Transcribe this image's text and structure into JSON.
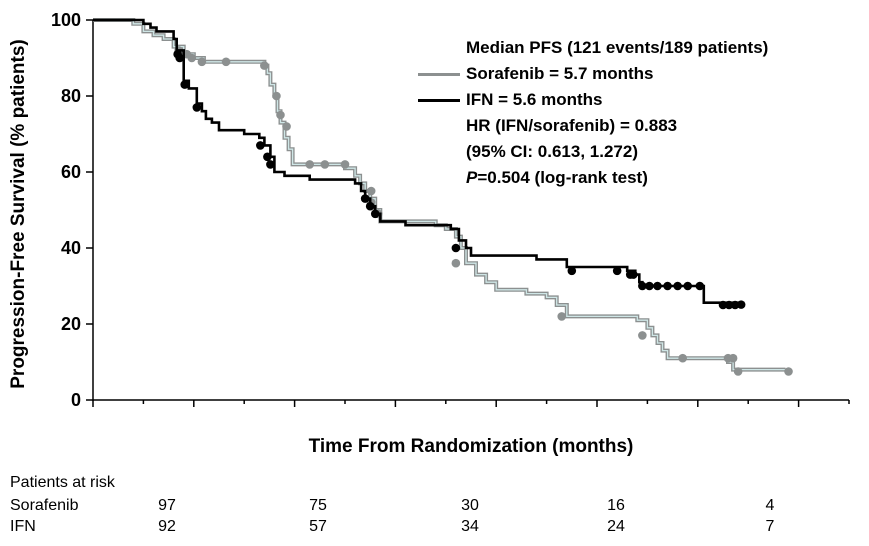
{
  "chart_data": {
    "type": "line",
    "title": "",
    "xlabel": "Time From Randomization (months)",
    "ylabel": "Progression-Free Survival (% patients)",
    "ylim": [
      0,
      100
    ],
    "yticks": [
      0,
      20,
      40,
      60,
      80,
      100
    ],
    "x_axis_ticks_labeled": false,
    "colors": {
      "sorafenib": "#8c9090",
      "ifn": "#000000",
      "sorafenib_inner": "#cfe6e6"
    },
    "series": [
      {
        "name": "Sorafenib",
        "steps": [
          [
            0,
            100
          ],
          [
            4,
            99
          ],
          [
            5,
            97
          ],
          [
            6,
            96
          ],
          [
            7,
            95
          ],
          [
            8,
            93
          ],
          [
            9,
            91
          ],
          [
            10,
            90
          ],
          [
            11,
            89
          ],
          [
            17,
            88
          ],
          [
            17.3,
            86
          ],
          [
            17.6,
            83
          ],
          [
            18,
            80
          ],
          [
            18.3,
            76
          ],
          [
            18.6,
            73
          ],
          [
            19,
            69
          ],
          [
            19.4,
            66
          ],
          [
            19.8,
            62
          ],
          [
            25,
            61
          ],
          [
            26,
            59
          ],
          [
            26.5,
            57
          ],
          [
            27,
            55
          ],
          [
            27.5,
            53
          ],
          [
            28,
            50
          ],
          [
            28.5,
            47
          ],
          [
            34,
            46
          ],
          [
            35,
            45
          ],
          [
            36,
            43
          ],
          [
            36.5,
            40
          ],
          [
            37,
            36
          ],
          [
            38,
            33
          ],
          [
            39,
            31
          ],
          [
            40,
            29
          ],
          [
            43,
            28
          ],
          [
            45,
            27
          ],
          [
            46,
            25
          ],
          [
            47,
            22
          ],
          [
            54,
            21
          ],
          [
            55,
            19
          ],
          [
            55.5,
            17
          ],
          [
            56,
            15
          ],
          [
            56.5,
            13
          ],
          [
            57,
            11
          ],
          [
            63,
            10
          ],
          [
            63.5,
            8
          ],
          [
            68.7,
            8
          ]
        ],
        "censor_marks": [
          [
            8.5,
            92
          ],
          [
            9.3,
            91
          ],
          [
            9.8,
            90
          ],
          [
            10.8,
            89
          ],
          [
            13.2,
            89
          ],
          [
            17,
            88
          ],
          [
            18.2,
            80
          ],
          [
            18.6,
            75
          ],
          [
            19.2,
            72
          ],
          [
            21.5,
            62
          ],
          [
            23,
            62
          ],
          [
            25,
            62
          ],
          [
            27.6,
            55
          ],
          [
            27.6,
            52
          ],
          [
            28.3,
            49
          ],
          [
            36,
            36
          ],
          [
            46.5,
            22
          ],
          [
            54.5,
            17
          ],
          [
            58.5,
            11
          ],
          [
            63,
            11
          ],
          [
            63.5,
            11
          ],
          [
            64,
            7.5
          ],
          [
            69,
            7.5
          ]
        ]
      },
      {
        "name": "IFN",
        "steps": [
          [
            0,
            100
          ],
          [
            5,
            99
          ],
          [
            5.7,
            98
          ],
          [
            6.3,
            97
          ],
          [
            8,
            95
          ],
          [
            8.3,
            92
          ],
          [
            9,
            84
          ],
          [
            9.5,
            82
          ],
          [
            10.3,
            78
          ],
          [
            10.8,
            76
          ],
          [
            11.2,
            74
          ],
          [
            11.8,
            73
          ],
          [
            12.5,
            71
          ],
          [
            15,
            70
          ],
          [
            16.5,
            69
          ],
          [
            17,
            67
          ],
          [
            17.6,
            64
          ],
          [
            18,
            60
          ],
          [
            19,
            59
          ],
          [
            21.5,
            58
          ],
          [
            26,
            57
          ],
          [
            26.6,
            55
          ],
          [
            27,
            53
          ],
          [
            27.5,
            51
          ],
          [
            28,
            49
          ],
          [
            28.5,
            47
          ],
          [
            31,
            46
          ],
          [
            35.5,
            45
          ],
          [
            36.3,
            42
          ],
          [
            37,
            40
          ],
          [
            37.5,
            38
          ],
          [
            44,
            37
          ],
          [
            47,
            35
          ],
          [
            53,
            34
          ],
          [
            53.8,
            33
          ],
          [
            54.2,
            31
          ],
          [
            54.5,
            30
          ],
          [
            60.6,
            25.6
          ],
          [
            64.2,
            25.4
          ]
        ],
        "censor_marks": [
          [
            8.4,
            91
          ],
          [
            8.6,
            90
          ],
          [
            9.1,
            83
          ],
          [
            10.3,
            77
          ],
          [
            16.6,
            67
          ],
          [
            17.3,
            64
          ],
          [
            17.6,
            62
          ],
          [
            27,
            53
          ],
          [
            27.5,
            51
          ],
          [
            28,
            49
          ],
          [
            36,
            40
          ],
          [
            47.5,
            34
          ],
          [
            52,
            34
          ],
          [
            53.3,
            33
          ],
          [
            53.6,
            33
          ],
          [
            54.5,
            30
          ],
          [
            55.2,
            30
          ],
          [
            56,
            30
          ],
          [
            57,
            30
          ],
          [
            58,
            30
          ],
          [
            59,
            30
          ],
          [
            60.2,
            30
          ],
          [
            62.5,
            25
          ],
          [
            63.1,
            25
          ],
          [
            63.7,
            25
          ],
          [
            64.3,
            25.1
          ]
        ]
      }
    ],
    "annotations": {
      "heading": "Median PFS (121 events/189 patients)",
      "sorafenib_label": "Sorafenib = 5.7 months",
      "ifn_label": "IFN = 5.6 months",
      "hr": "HR (IFN/sorafenib) = 0.883",
      "ci": "(95% CI: 0.613, 1.272)",
      "p_symbol": "P",
      "p_rest": "=0.504 (log-rank test)"
    }
  },
  "risk_table": {
    "title": "Patients at risk",
    "rows": [
      {
        "name": "Sorafenib",
        "values": [
          "97",
          "75",
          "30",
          "16",
          "4"
        ]
      },
      {
        "name": "IFN",
        "values": [
          "92",
          "57",
          "34",
          "24",
          "7"
        ]
      }
    ]
  }
}
